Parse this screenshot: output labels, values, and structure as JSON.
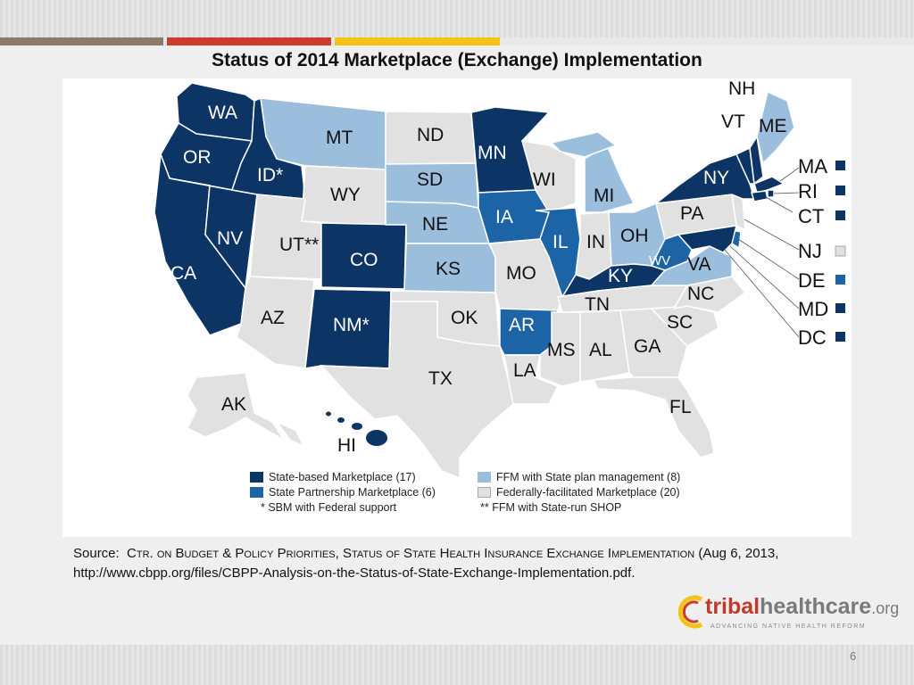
{
  "title": "Status of 2014 Marketplace (Exchange) Implementation",
  "colors": {
    "sbm": "#0c3565",
    "partnership": "#1c64a6",
    "ffm_plan": "#9bbedd",
    "ffm": "#e1e1e1",
    "accent_gray": "#8c7a6a",
    "accent_red": "#cc3b2b",
    "accent_gold": "#f3c316"
  },
  "legend": {
    "sbm": "State-based Marketplace (17)",
    "partnership": "State Partnership Marketplace (6)",
    "sbm_federal": "* SBM with Federal support",
    "ffm_plan": "FFM with State plan management (8)",
    "ffm": "Federally-facilitated Marketplace (20)",
    "ffm_shop": "** FFM with State-run SHOP"
  },
  "states": {
    "WA": "WA",
    "OR": "OR",
    "CA": "CA",
    "ID": "ID*",
    "NV": "NV",
    "MT": "MT",
    "WY": "WY",
    "UT": "UT**",
    "AZ": "AZ",
    "CO": "CO",
    "NM": "NM*",
    "ND": "ND",
    "SD": "SD",
    "NE": "NE",
    "KS": "KS",
    "OK": "OK",
    "TX": "TX",
    "MN": "MN",
    "IA": "IA",
    "MO": "MO",
    "AR": "AR",
    "LA": "LA",
    "WI": "WI",
    "IL": "IL",
    "MI": "MI",
    "IN": "IN",
    "OH": "OH",
    "KY": "KY",
    "TN": "TN",
    "MS": "MS",
    "AL": "AL",
    "GA": "GA",
    "FL": "FL",
    "SC": "SC",
    "NC": "NC",
    "VA": "VA",
    "WV": "WV",
    "PA": "PA",
    "NY": "NY",
    "VT": "VT",
    "NH": "NH",
    "ME": "ME",
    "AK": "AK",
    "HI": "HI"
  },
  "side_states": [
    {
      "label": "MA",
      "status": "sbm"
    },
    {
      "label": "RI",
      "status": "sbm"
    },
    {
      "label": "CT",
      "status": "sbm"
    },
    {
      "label": "NJ",
      "status": "ffm"
    },
    {
      "label": "DE",
      "status": "partnership"
    },
    {
      "label": "MD",
      "status": "sbm"
    },
    {
      "label": "DC",
      "status": "sbm"
    }
  ],
  "source": {
    "prefix": "Source:",
    "org": "Ctr. on Budget & Policy Priorities",
    "report": "Status of State Health Insurance Exchange Implementation",
    "rest": "(Aug 6, 2013, http://www.cbpp.org/files/CBPP-Analysis-on-the-Status-of-State-Exchange-Implementation.pdf."
  },
  "logo": {
    "tribal": "tribal",
    "healthcare": "healthcare",
    "org": ".org",
    "tagline": "ADVANCING NATIVE HEALTH REFORM"
  },
  "page_number": "6"
}
